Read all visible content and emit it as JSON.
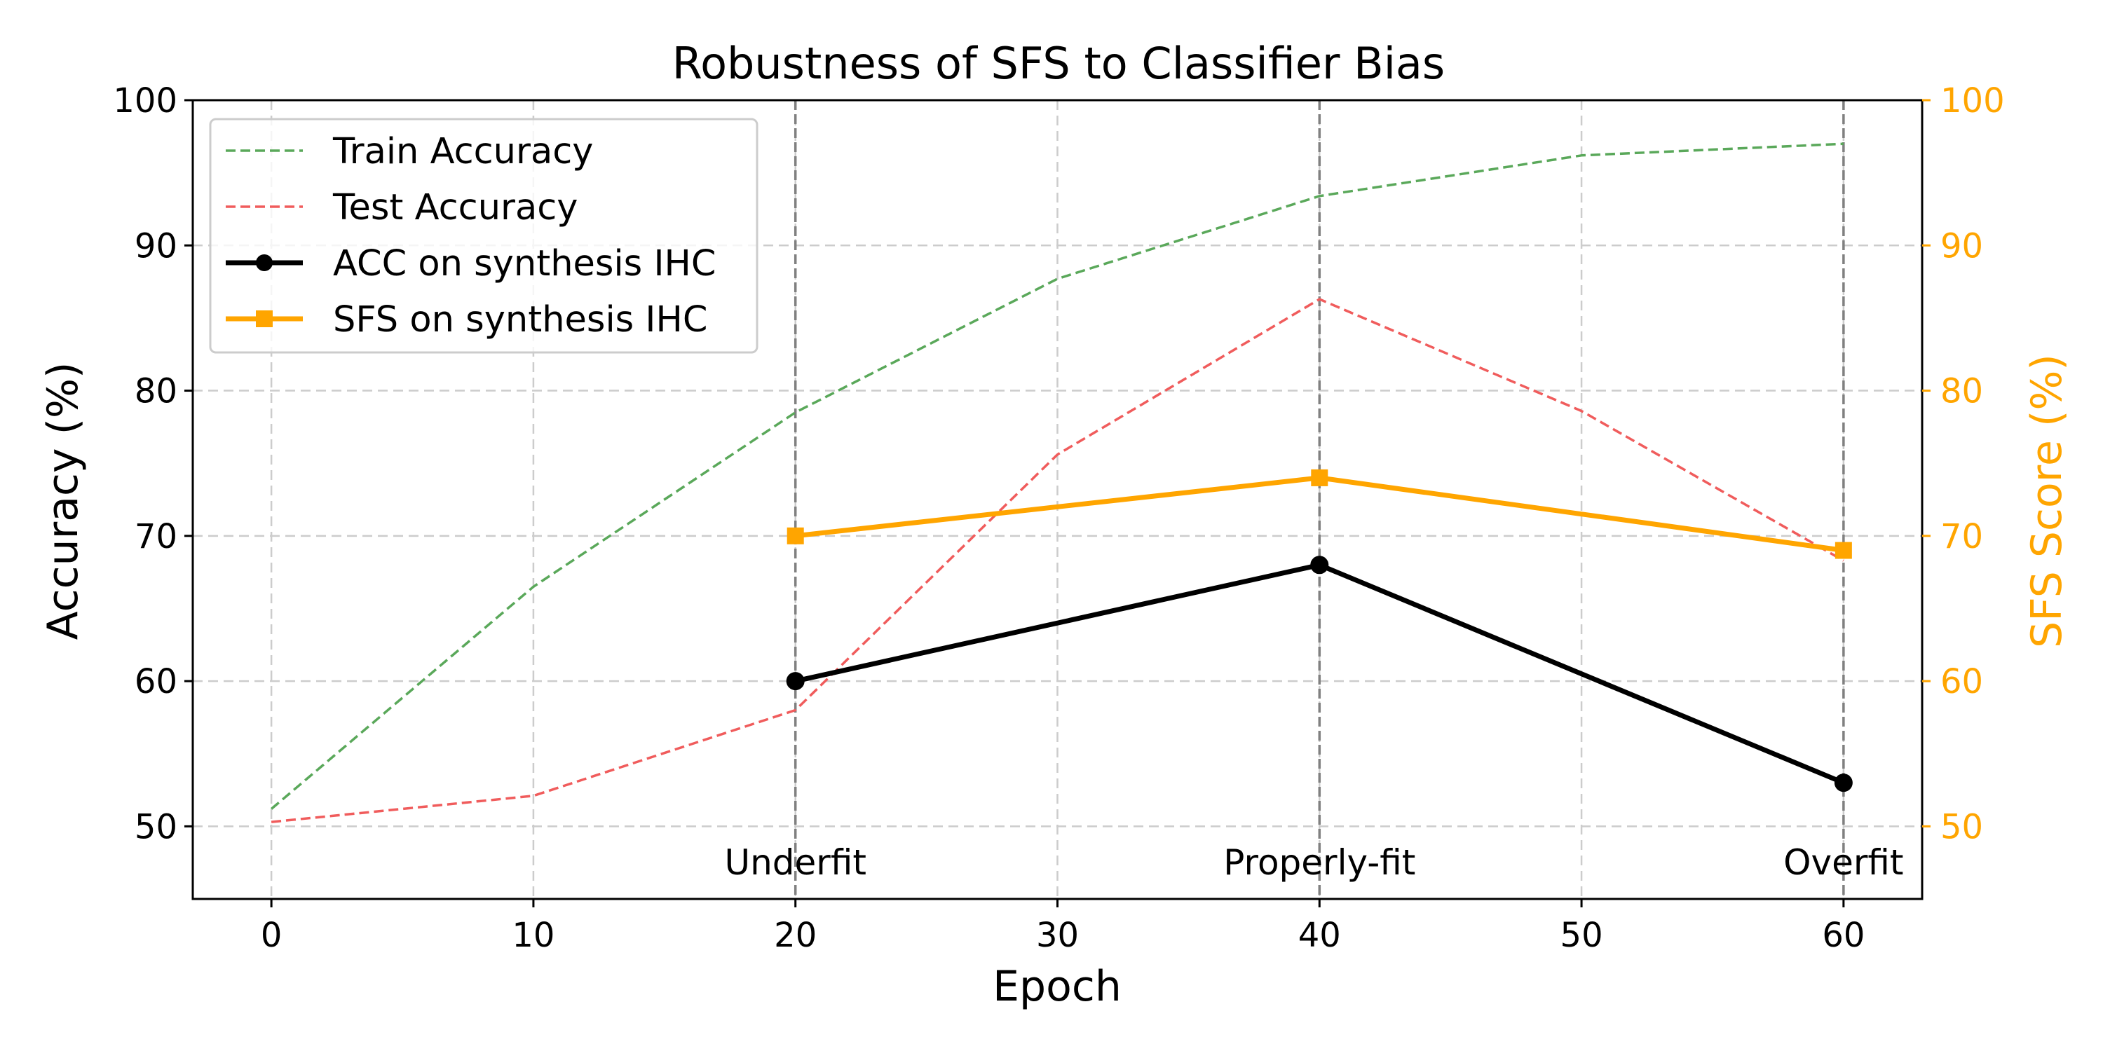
{
  "chart_data": {
    "type": "line",
    "title": "Robustness of SFS to Classifier Bias",
    "xlabel": "Epoch",
    "ylabel": "Accuracy (%)",
    "y2label": "SFS Score (%)",
    "xlim": [
      -3,
      63
    ],
    "ylim": [
      45,
      100
    ],
    "y2lim": [
      45,
      100
    ],
    "xticks": [
      0,
      10,
      20,
      30,
      40,
      50,
      60
    ],
    "yticks": [
      50,
      60,
      70,
      80,
      90,
      100
    ],
    "y2ticks": [
      50,
      60,
      70,
      80,
      90,
      100
    ],
    "grid": true,
    "legend_position": "top-left",
    "colors": {
      "train": "#5aa85a",
      "test": "#f05c5c",
      "acc": "#000000",
      "sfs": "#ffa500",
      "right_axis": "#ffa500",
      "grid": "#cccccc",
      "vline": "#808080"
    },
    "series": [
      {
        "key": "train",
        "name": "Train Accuracy",
        "axis": "left",
        "style": "dashed",
        "marker": "none",
        "x": [
          0,
          10,
          20,
          30,
          40,
          50,
          60
        ],
        "values": [
          51.2,
          66.5,
          78.5,
          87.7,
          93.4,
          96.2,
          97.0
        ]
      },
      {
        "key": "test",
        "name": "Test Accuracy",
        "axis": "left",
        "style": "dashed",
        "marker": "none",
        "x": [
          0,
          10,
          20,
          30,
          40,
          50,
          60
        ],
        "values": [
          50.3,
          52.1,
          58.0,
          75.6,
          86.3,
          78.6,
          68.3
        ]
      },
      {
        "key": "acc",
        "name": "ACC on synthesis IHC",
        "axis": "left",
        "style": "solid",
        "marker": "circle",
        "x": [
          20,
          40,
          60
        ],
        "values": [
          60,
          68,
          53
        ]
      },
      {
        "key": "sfs",
        "name": "SFS on synthesis IHC",
        "axis": "right",
        "style": "solid",
        "marker": "square",
        "x": [
          20,
          40,
          60
        ],
        "values": [
          70,
          74,
          69
        ]
      }
    ],
    "vlines": [
      20,
      40,
      60
    ],
    "annotations": [
      {
        "x": 20,
        "text": "Underfit"
      },
      {
        "x": 40,
        "text": "Properly-fit"
      },
      {
        "x": 60,
        "text": "Overfit"
      }
    ]
  }
}
